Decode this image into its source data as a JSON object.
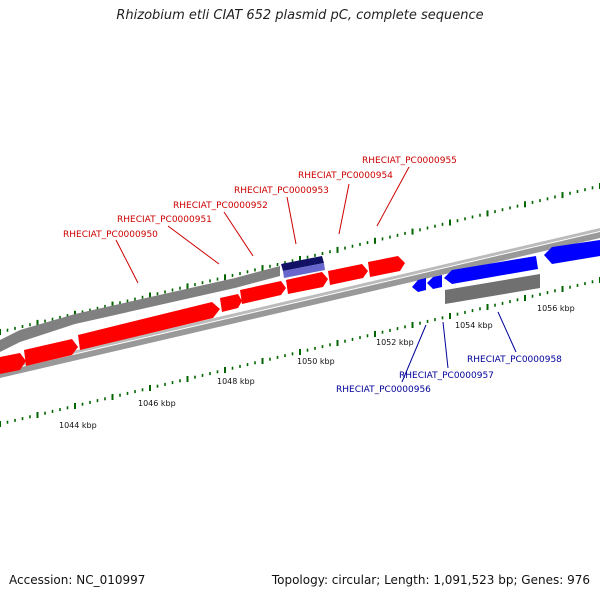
{
  "title": "Rhizobium etli CIAT 652 plasmid pC, complete sequence",
  "footer": {
    "accession": "Accession: NC_010997",
    "summary": "Topology: circular; Length: 1,091,523 bp; Genes: 976"
  },
  "colors": {
    "forward_gene": "#ff0000",
    "reverse_gene": "#0000ff",
    "highlight_gene": "#6666cc",
    "feature_bar": "#808080",
    "backbone": "#999999",
    "ticks": "#006600",
    "forward_label": "#cc0000",
    "reverse_label": "#000099"
  },
  "scale_labels": [
    "1044 kbp",
    "1046 kbp",
    "1048 kbp",
    "1050 kbp",
    "1052 kbp",
    "1054 kbp",
    "1056 kbp"
  ],
  "forward_gene_labels": [
    "RHECIAT_PC0000950",
    "RHECIAT_PC0000951",
    "RHECIAT_PC0000952",
    "RHECIAT_PC0000953",
    "RHECIAT_PC0000954",
    "RHECIAT_PC0000955"
  ],
  "reverse_gene_labels": [
    "RHECIAT_PC0000956",
    "RHECIAT_PC0000957",
    "RHECIAT_PC0000958"
  ]
}
